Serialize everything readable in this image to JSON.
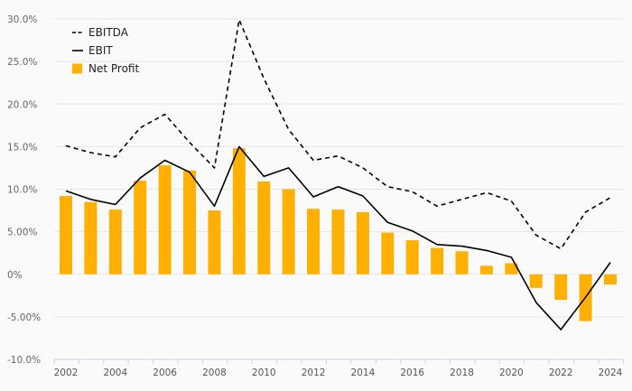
{
  "chart_data": {
    "type": "bar",
    "x": [
      2002,
      2003,
      2004,
      2005,
      2006,
      2007,
      2008,
      2009,
      2010,
      2011,
      2012,
      2013,
      2014,
      2015,
      2016,
      2017,
      2018,
      2019,
      2020,
      2021,
      2022,
      2023,
      2024
    ],
    "x_tick_labels": [
      "2002",
      "2004",
      "2006",
      "2008",
      "2010",
      "2012",
      "2014",
      "2016",
      "2018",
      "2020",
      "2022",
      "2024"
    ],
    "y_tick_labels": [
      "30.0%",
      "25.0%",
      "20.0%",
      "15.0%",
      "10.0%",
      "5.00%",
      "0%",
      "-5.00%",
      "-10.0%"
    ],
    "ylim": [
      -10,
      30
    ],
    "y_unit": "%",
    "grid": true,
    "legend_position": "top-left",
    "series": [
      {
        "name": "EBITDA",
        "kind": "line",
        "style": "dashed",
        "color": "#000000",
        "values": [
          15.1,
          14.3,
          13.8,
          17.2,
          18.8,
          15.5,
          12.5,
          29.9,
          23.0,
          17.0,
          13.4,
          13.9,
          12.5,
          10.3,
          9.7,
          8.0,
          8.8,
          9.6,
          8.6,
          4.6,
          3.0,
          7.3,
          9.0
        ]
      },
      {
        "name": "EBIT",
        "kind": "line",
        "style": "solid",
        "color": "#000000",
        "values": [
          9.8,
          8.8,
          8.2,
          11.3,
          13.4,
          12.0,
          8.0,
          15.0,
          11.5,
          12.5,
          9.1,
          10.3,
          9.2,
          6.1,
          5.1,
          3.5,
          3.3,
          2.8,
          2.0,
          -3.3,
          -6.5,
          -2.7,
          1.4
        ]
      },
      {
        "name": "Net Profit",
        "kind": "bar",
        "color": "#FFB000",
        "values": [
          9.2,
          8.5,
          7.6,
          11.0,
          12.8,
          12.2,
          7.5,
          14.8,
          10.9,
          10.0,
          7.7,
          7.6,
          7.3,
          4.9,
          4.0,
          3.1,
          2.7,
          1.0,
          1.3,
          -1.6,
          -3.0,
          -5.5,
          -1.2
        ]
      }
    ]
  }
}
